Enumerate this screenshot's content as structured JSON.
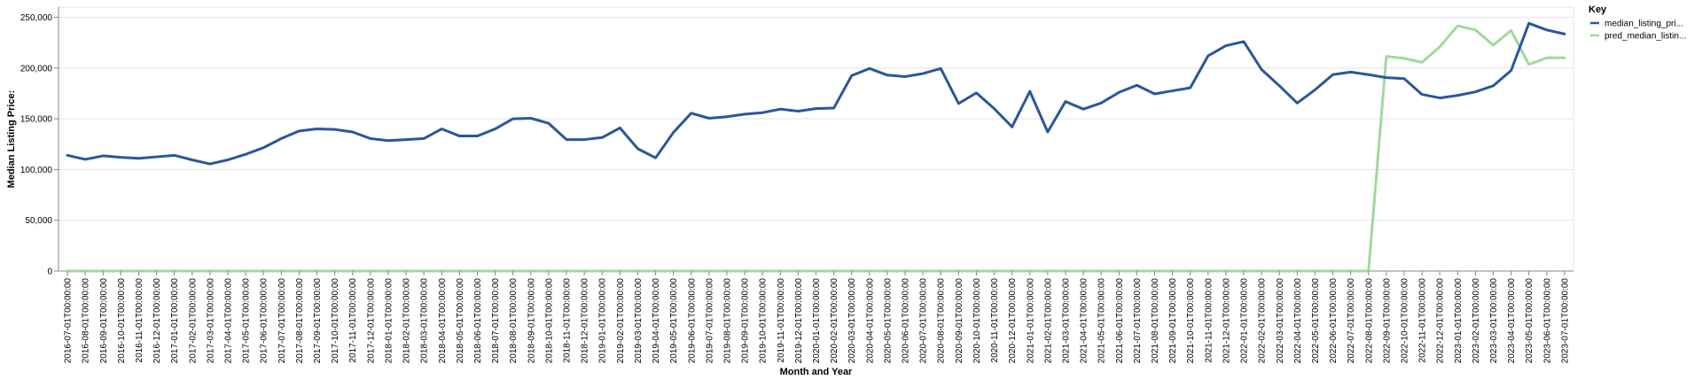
{
  "chart_data": {
    "type": "line",
    "xlabel": "Month and Year",
    "ylabel": "Median Listing Price:",
    "ylim": [
      0,
      260000
    ],
    "yticks": [
      0,
      50000,
      100000,
      150000,
      200000,
      250000
    ],
    "ytick_labels": [
      "0",
      "50,000",
      "100,000",
      "150,000",
      "200,000",
      "250,000"
    ],
    "grid": true,
    "legend": {
      "title": "Key",
      "placement": "right",
      "entries": [
        "median_listing_pri...",
        "pred_median_listin..."
      ]
    },
    "x": [
      "2016-07-01T00:00:00",
      "2016-08-01T00:00:00",
      "2016-09-01T00:00:00",
      "2016-10-01T00:00:00",
      "2016-11-01T00:00:00",
      "2016-12-01T00:00:00",
      "2017-01-01T00:00:00",
      "2017-02-01T00:00:00",
      "2017-03-01T00:00:00",
      "2017-04-01T00:00:00",
      "2017-05-01T00:00:00",
      "2017-06-01T00:00:00",
      "2017-07-01T00:00:00",
      "2017-08-01T00:00:00",
      "2017-09-01T00:00:00",
      "2017-10-01T00:00:00",
      "2017-11-01T00:00:00",
      "2017-12-01T00:00:00",
      "2018-01-01T00:00:00",
      "2018-02-01T00:00:00",
      "2018-03-01T00:00:00",
      "2018-04-01T00:00:00",
      "2018-05-01T00:00:00",
      "2018-06-01T00:00:00",
      "2018-07-01T00:00:00",
      "2018-08-01T00:00:00",
      "2018-09-01T00:00:00",
      "2018-10-01T00:00:00",
      "2018-11-01T00:00:00",
      "2018-12-01T00:00:00",
      "2019-01-01T00:00:00",
      "2019-02-01T00:00:00",
      "2019-03-01T00:00:00",
      "2019-04-01T00:00:00",
      "2019-05-01T00:00:00",
      "2019-06-01T00:00:00",
      "2019-07-01T00:00:00",
      "2019-08-01T00:00:00",
      "2019-09-01T00:00:00",
      "2019-10-01T00:00:00",
      "2019-11-01T00:00:00",
      "2019-12-01T00:00:00",
      "2020-01-01T00:00:00",
      "2020-02-01T00:00:00",
      "2020-03-01T00:00:00",
      "2020-04-01T00:00:00",
      "2020-05-01T00:00:00",
      "2020-06-01T00:00:00",
      "2020-07-01T00:00:00",
      "2020-08-01T00:00:00",
      "2020-09-01T00:00:00",
      "2020-10-01T00:00:00",
      "2020-11-01T00:00:00",
      "2020-12-01T00:00:00",
      "2021-01-01T00:00:00",
      "2021-02-01T00:00:00",
      "2021-03-01T00:00:00",
      "2021-04-01T00:00:00",
      "2021-05-01T00:00:00",
      "2021-06-01T00:00:00",
      "2021-07-01T00:00:00",
      "2021-08-01T00:00:00",
      "2021-09-01T00:00:00",
      "2021-10-01T00:00:00",
      "2021-11-01T00:00:00",
      "2021-12-01T00:00:00",
      "2022-01-01T00:00:00",
      "2022-02-01T00:00:00",
      "2022-03-01T00:00:00",
      "2022-04-01T00:00:00",
      "2022-05-01T00:00:00",
      "2022-06-01T00:00:00",
      "2022-07-01T00:00:00",
      "2022-08-01T00:00:00",
      "2022-09-01T00:00:00",
      "2022-10-01T00:00:00",
      "2022-11-01T00:00:00",
      "2022-12-01T00:00:00",
      "2023-01-01T00:00:00",
      "2023-02-01T00:00:00",
      "2023-03-01T00:00:00",
      "2023-04-01T00:00:00",
      "2023-05-01T00:00:00",
      "2023-06-01T00:00:00",
      "2023-07-01T00:00:00"
    ],
    "series": [
      {
        "name": "median_listing_pri...",
        "color": "#2b579a",
        "values": [
          114000,
          110000,
          113500,
          112000,
          111000,
          112500,
          114000,
          109500,
          105500,
          109500,
          115000,
          121500,
          130500,
          138000,
          140000,
          139500,
          137000,
          130500,
          128500,
          129500,
          130500,
          140000,
          133000,
          133000,
          140000,
          150000,
          150500,
          145500,
          129500,
          129500,
          131500,
          141000,
          120500,
          111500,
          136500,
          155500,
          150500,
          152000,
          154500,
          156000,
          159500,
          157500,
          160000,
          160500,
          192500,
          199500,
          193000,
          191500,
          194500,
          199500,
          165000,
          175500,
          160000,
          142000,
          177000,
          137000,
          167000,
          159500,
          165500,
          176000,
          183000,
          174500,
          177500,
          180500,
          212000,
          222000,
          226000,
          198500,
          182500,
          165500,
          178500,
          193500,
          196000,
          193500,
          190500,
          189500,
          174000,
          170500,
          173000,
          176500,
          182500,
          197500,
          244000,
          237500,
          233500
        ]
      },
      {
        "name": "pred_median_listin...",
        "color": "#a1d99b",
        "values": [
          0,
          0,
          0,
          0,
          0,
          0,
          0,
          0,
          0,
          0,
          0,
          0,
          0,
          0,
          0,
          0,
          0,
          0,
          0,
          0,
          0,
          0,
          0,
          0,
          0,
          0,
          0,
          0,
          0,
          0,
          0,
          0,
          0,
          0,
          0,
          0,
          0,
          0,
          0,
          0,
          0,
          0,
          0,
          0,
          0,
          0,
          0,
          0,
          0,
          0,
          0,
          0,
          0,
          0,
          0,
          0,
          0,
          0,
          0,
          0,
          0,
          0,
          0,
          0,
          0,
          0,
          0,
          0,
          0,
          0,
          0,
          0,
          0,
          0,
          211500,
          209500,
          205500,
          221000,
          241500,
          237500,
          222500,
          237000,
          203500,
          210000,
          210000
        ]
      }
    ]
  }
}
